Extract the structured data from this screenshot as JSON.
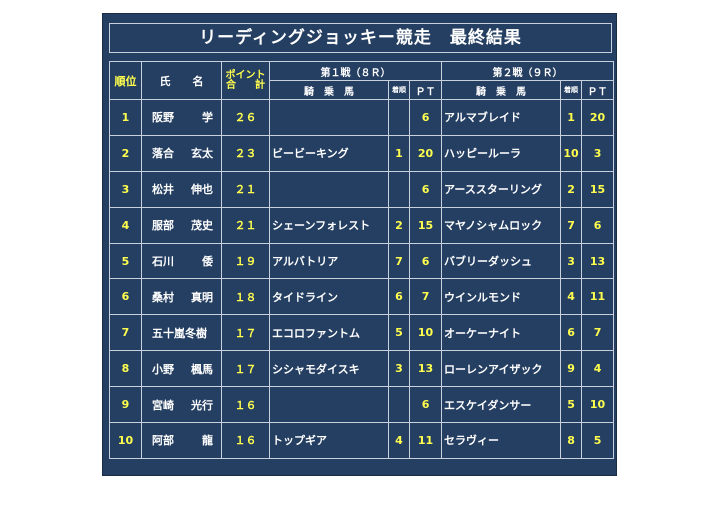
{
  "title": "リーディングジョッキー競走　最終結果",
  "colors": {
    "background": "#253f62",
    "highlight": "#ffff4d",
    "text": "#ffffff",
    "grid": "#c9d2dc"
  },
  "headers": {
    "rank": "順位",
    "name_a": "氏",
    "name_b": "名",
    "points_a": "ポイント",
    "points_b1": "合",
    "points_b2": "計",
    "race1": "第１戦（８Ｒ）",
    "race2": "第２戦（９Ｒ）",
    "horse": "騎　乗　馬",
    "finish": "着順",
    "pt": "ＰＴ"
  },
  "rows": [
    {
      "rank": "1",
      "last": "阪野",
      "first": "学",
      "total": "２６",
      "r1_horse": "",
      "r1_finish": "",
      "r1_pt": "6",
      "r2_horse": "アルマブレイド",
      "r2_finish": "1",
      "r2_pt": "20"
    },
    {
      "rank": "2",
      "last": "落合",
      "first": "玄太",
      "total": "２３",
      "r1_horse": "ビービーキング",
      "r1_finish": "1",
      "r1_pt": "20",
      "r2_horse": "ハッピールーラ",
      "r2_finish": "10",
      "r2_pt": "3"
    },
    {
      "rank": "3",
      "last": "松井",
      "first": "伸也",
      "total": "２１",
      "r1_horse": "",
      "r1_finish": "",
      "r1_pt": "6",
      "r2_horse": "アーススターリング",
      "r2_finish": "2",
      "r2_pt": "15"
    },
    {
      "rank": "4",
      "last": "服部",
      "first": "茂史",
      "total": "２１",
      "r1_horse": "シェーンフォレスト",
      "r1_finish": "2",
      "r1_pt": "15",
      "r2_horse": "マヤノシャムロック",
      "r2_finish": "7",
      "r2_pt": "6"
    },
    {
      "rank": "5",
      "last": "石川",
      "first": "倭",
      "total": "１９",
      "r1_horse": "アルバトリア",
      "r1_finish": "7",
      "r1_pt": "6",
      "r2_horse": "バブリーダッシュ",
      "r2_finish": "3",
      "r2_pt": "13"
    },
    {
      "rank": "6",
      "last": "桑村",
      "first": "真明",
      "total": "１８",
      "r1_horse": "タイドライン",
      "r1_finish": "6",
      "r1_pt": "7",
      "r2_horse": "ウインルモンド",
      "r2_finish": "4",
      "r2_pt": "11"
    },
    {
      "rank": "7",
      "last": "五十嵐冬樹",
      "first": "",
      "total": "１７",
      "r1_horse": "エコロファントム",
      "r1_finish": "5",
      "r1_pt": "10",
      "r2_horse": "オーケーナイト",
      "r2_finish": "6",
      "r2_pt": "7"
    },
    {
      "rank": "8",
      "last": "小野",
      "first": "楓馬",
      "total": "１７",
      "r1_horse": "シシャモダイスキ",
      "r1_finish": "3",
      "r1_pt": "13",
      "r2_horse": "ローレンアイザック",
      "r2_finish": "9",
      "r2_pt": "4"
    },
    {
      "rank": "9",
      "last": "宮崎",
      "first": "光行",
      "total": "１６",
      "r1_horse": "",
      "r1_finish": "",
      "r1_pt": "6",
      "r2_horse": "エスケイダンサー",
      "r2_finish": "5",
      "r2_pt": "10"
    },
    {
      "rank": "10",
      "last": "阿部",
      "first": "龍",
      "total": "１６",
      "r1_horse": "トップギア",
      "r1_finish": "4",
      "r1_pt": "11",
      "r2_horse": "セラヴィー",
      "r2_finish": "8",
      "r2_pt": "5"
    }
  ]
}
